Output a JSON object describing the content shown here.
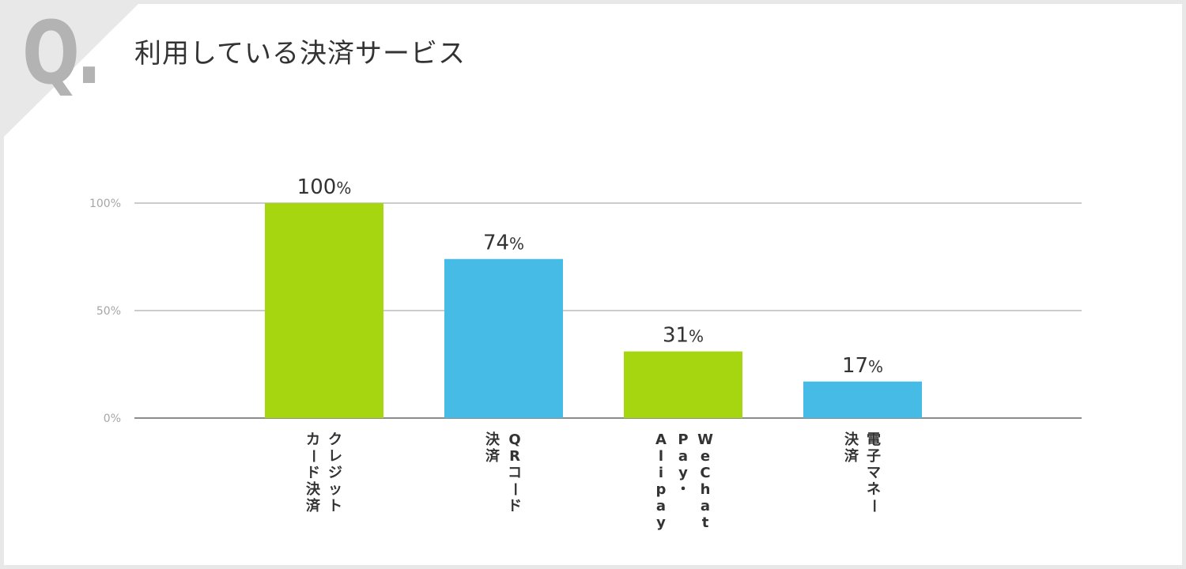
{
  "header": {
    "q_mark": "Q.",
    "title": "利用している決済サービス"
  },
  "colors": {
    "green": "#a5d610",
    "blue": "#46bbe5",
    "grid": "#999999",
    "axis": "#666666"
  },
  "chart_data": {
    "type": "bar",
    "title": "利用している決済サービス",
    "categories": [
      "クレジットカード決済",
      "QRコード決済",
      "WeChat Pay・Alipay",
      "電子マネー決済"
    ],
    "category_columns": [
      [
        "クレジット",
        "カード決済"
      ],
      [
        "QRコード",
        "決済"
      ],
      [
        "WeChat",
        "Pay・",
        "Alipay"
      ],
      [
        "電子マネー",
        "決済"
      ]
    ],
    "values": [
      100,
      74,
      31,
      17
    ],
    "value_labels": [
      "100",
      "74",
      "31",
      "17"
    ],
    "unit": "%",
    "bar_colors": [
      "#a5d610",
      "#46bbe5",
      "#a5d610",
      "#46bbe5"
    ],
    "yticks": [
      "0%",
      "50%",
      "100%"
    ],
    "ytick_values": [
      0,
      50,
      100
    ],
    "ylim": [
      0,
      100
    ],
    "grid": true,
    "legend": "none",
    "xlabel": "",
    "ylabel": ""
  }
}
